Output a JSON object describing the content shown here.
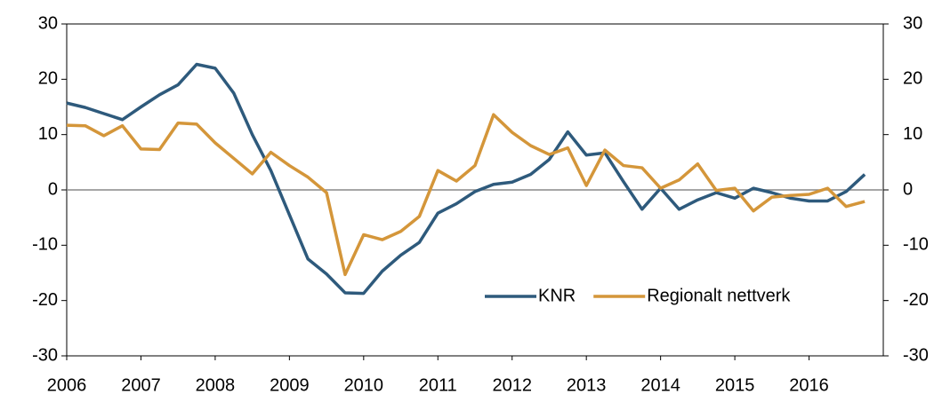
{
  "chart_data": {
    "type": "line",
    "x": [
      2006,
      2006.25,
      2006.5,
      2006.75,
      2007,
      2007.25,
      2007.5,
      2007.75,
      2008,
      2008.25,
      2008.5,
      2008.75,
      2009,
      2009.25,
      2009.5,
      2009.75,
      2010,
      2010.25,
      2010.5,
      2010.75,
      2011,
      2011.25,
      2011.5,
      2011.75,
      2012,
      2012.25,
      2012.5,
      2012.75,
      2013,
      2013.25,
      2013.5,
      2013.75,
      2014,
      2014.25,
      2014.5,
      2014.75,
      2015,
      2015.25,
      2015.5,
      2015.75,
      2016,
      2016.25,
      2016.5,
      2016.75
    ],
    "series": [
      {
        "name": "KNR",
        "color": "#2e5a7c",
        "values": [
          15.7,
          14.9,
          13.8,
          12.7,
          15.0,
          17.2,
          19.0,
          22.7,
          22.0,
          17.5,
          10.0,
          3.5,
          -4.5,
          -12.5,
          -15.2,
          -18.6,
          -18.7,
          -14.7,
          -11.8,
          -9.5,
          -4.2,
          -2.5,
          -0.3,
          1.0,
          1.4,
          2.8,
          5.5,
          10.5,
          6.3,
          6.7,
          1.5,
          -3.5,
          0.3,
          -3.5,
          -1.8,
          -0.5,
          -1.5,
          0.3,
          -0.5,
          -1.5,
          -2.0,
          -2.0,
          -0.3,
          2.8
        ]
      },
      {
        "name": "Regionalt nettverk",
        "color": "#d4963a",
        "values": [
          11.7,
          11.6,
          9.8,
          11.6,
          7.4,
          7.3,
          12.1,
          11.9,
          8.5,
          5.7,
          2.9,
          6.8,
          4.4,
          2.3,
          -0.5,
          -15.3,
          -8.1,
          -9.0,
          -7.5,
          -4.8,
          3.5,
          1.6,
          4.4,
          13.6,
          10.4,
          8.0,
          6.4,
          7.6,
          0.8,
          7.2,
          4.4,
          4.0,
          0.3,
          1.8,
          4.7,
          -0.1,
          0.3,
          -3.8,
          -1.3,
          -1.0,
          -0.8,
          0.3,
          -3.0,
          -2.1
        ]
      }
    ],
    "xlim": [
      2006,
      2017
    ],
    "xticks": [
      2006,
      2007,
      2008,
      2009,
      2010,
      2011,
      2012,
      2013,
      2014,
      2015,
      2016
    ],
    "ylim": [
      -30,
      30
    ],
    "yticks": [
      -30,
      -20,
      -10,
      0,
      10,
      20,
      30
    ],
    "y2lim": [
      -30,
      30
    ],
    "y2ticks": [
      -30,
      -20,
      -10,
      0,
      10,
      20,
      30
    ],
    "legend": "lower right"
  }
}
